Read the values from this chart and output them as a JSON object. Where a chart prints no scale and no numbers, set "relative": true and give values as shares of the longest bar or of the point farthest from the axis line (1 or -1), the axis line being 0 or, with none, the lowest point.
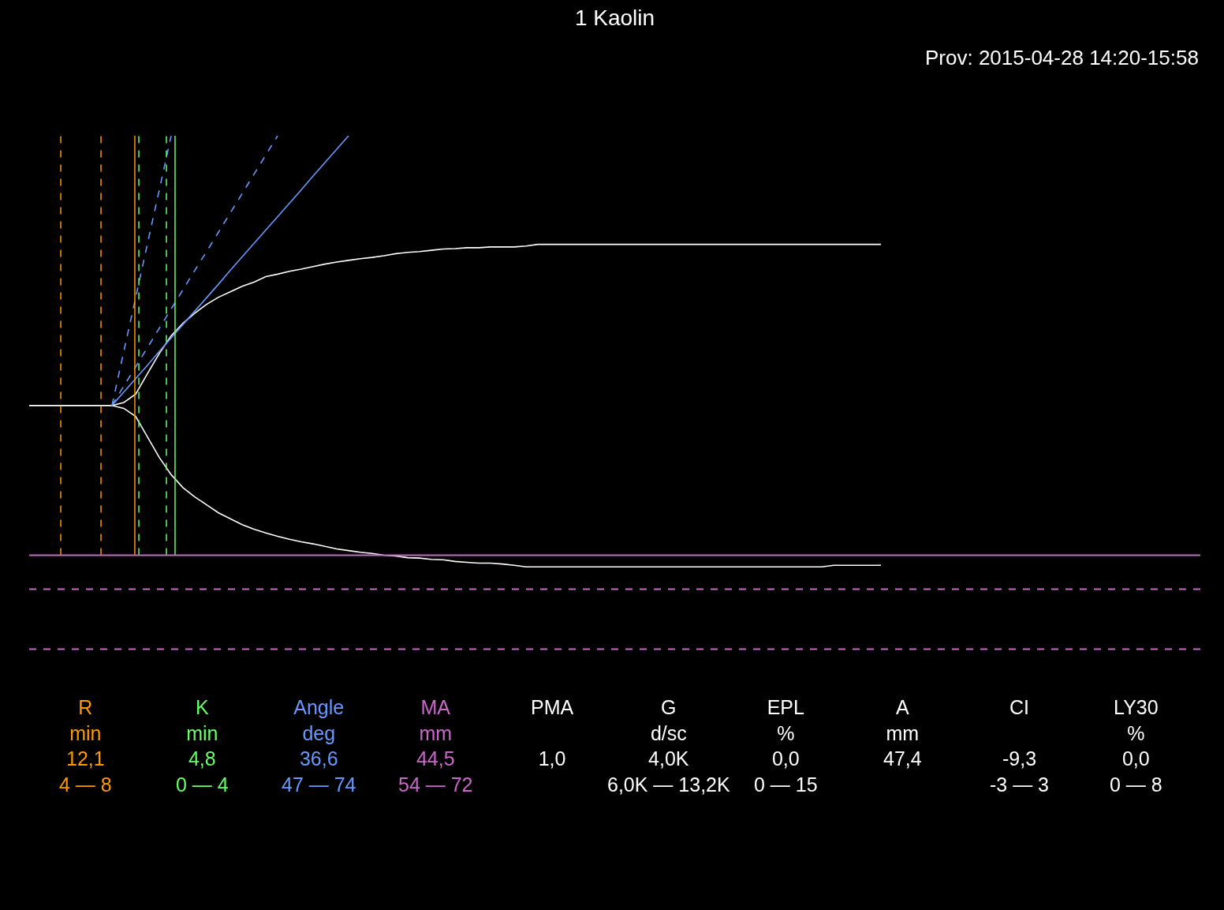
{
  "chart_data": {
    "type": "line",
    "relative": true,
    "title": "1 Kaolin",
    "subtitle": "Prov: 2015-04-28 14:20-15:58",
    "categories": [
      null,
      null,
      null,
      null,
      null,
      null,
      null,
      null,
      null,
      null,
      null,
      null,
      null,
      null,
      null,
      null,
      null,
      null,
      null,
      null,
      null,
      null,
      null,
      null,
      null,
      null,
      null,
      null,
      null,
      null,
      null,
      null,
      null,
      null,
      null,
      null,
      null,
      null,
      null,
      null,
      null,
      null,
      null,
      null,
      null,
      null,
      null,
      null,
      null,
      null,
      null,
      null,
      null,
      null,
      null,
      null,
      null,
      null,
      null,
      null,
      null,
      null,
      null,
      null,
      null,
      null,
      null,
      null,
      null,
      null,
      null,
      null,
      null,
      null,
      null,
      null,
      null,
      null,
      null,
      null,
      null,
      null,
      null,
      null,
      null,
      null,
      null,
      null,
      null,
      null,
      null,
      null,
      null,
      null,
      null,
      null,
      null,
      null,
      null,
      null
    ],
    "series": [
      {
        "color": "#ffffff",
        "line_style": "solid",
        "values": [
          0.357,
          0.357,
          0.357,
          0.357,
          0.357,
          0.357,
          0.357,
          0.357,
          0.364,
          0.384,
          0.433,
          0.481,
          0.523,
          0.553,
          0.577,
          0.598,
          0.615,
          0.628,
          0.641,
          0.651,
          0.664,
          0.67,
          0.677,
          0.682,
          0.688,
          0.694,
          0.699,
          0.703,
          0.707,
          0.71,
          0.714,
          0.719,
          0.722,
          0.724,
          0.727,
          0.73,
          0.731,
          0.733,
          0.733,
          0.735,
          0.735,
          0.735,
          0.737,
          0.741,
          0.741,
          0.741,
          0.741,
          0.741,
          0.741,
          0.741,
          0.741,
          0.741,
          0.741,
          0.741,
          0.741,
          0.741,
          0.741,
          0.741,
          0.741,
          0.741,
          0.741,
          0.741,
          0.741,
          0.741,
          0.741,
          0.741,
          0.741,
          0.741,
          0.741,
          0.741,
          0.741,
          0.741,
          0.741,
          null,
          null,
          null,
          null,
          null,
          null,
          null,
          null,
          null,
          null,
          null,
          null,
          null,
          null,
          null,
          null,
          null,
          null,
          null,
          null,
          null,
          null,
          null,
          null,
          null,
          null,
          null
        ]
      },
      {
        "color": "#ffffff",
        "line_style": "solid",
        "values": [
          0.357,
          0.357,
          0.357,
          0.357,
          0.357,
          0.357,
          0.357,
          0.357,
          0.35,
          0.331,
          0.282,
          0.233,
          0.192,
          0.161,
          0.139,
          0.12,
          0.101,
          0.087,
          0.073,
          0.062,
          0.053,
          0.045,
          0.038,
          0.032,
          0.027,
          0.021,
          0.015,
          0.011,
          0.007,
          0.004,
          0,
          -0.002,
          -0.006,
          -0.007,
          -0.01,
          -0.011,
          -0.015,
          -0.017,
          -0.019,
          -0.019,
          -0.021,
          -0.024,
          -0.028,
          -0.028,
          -0.028,
          -0.028,
          -0.028,
          -0.028,
          -0.028,
          -0.028,
          -0.028,
          -0.028,
          -0.028,
          -0.028,
          -0.028,
          -0.028,
          -0.028,
          -0.028,
          -0.028,
          -0.028,
          -0.028,
          -0.028,
          -0.028,
          -0.028,
          -0.028,
          -0.028,
          -0.028,
          -0.028,
          -0.024,
          -0.024,
          -0.024,
          -0.024,
          -0.024,
          null,
          null,
          null,
          null,
          null,
          null,
          null,
          null,
          null,
          null,
          null,
          null,
          null,
          null,
          null,
          null,
          null,
          null,
          null,
          null,
          null,
          null,
          null,
          null,
          null,
          null,
          null
        ]
      },
      {
        "color": "#6699ff",
        "line_style": "solid",
        "values": [
          null,
          null,
          null,
          null,
          null,
          null,
          null,
          0.357,
          0.389,
          0.421,
          0.453,
          0.486,
          0.518,
          0.55,
          0.582,
          0.614,
          0.646,
          0.679,
          0.711,
          0.743,
          0.775,
          0.807,
          0.839,
          0.871,
          0.904,
          0.936,
          0.968,
          1,
          null,
          null,
          null,
          null,
          null,
          null,
          null,
          null,
          null,
          null,
          null,
          null,
          null,
          null,
          null,
          null,
          null,
          null,
          null,
          null,
          null,
          null,
          null,
          null,
          null,
          null,
          null,
          null,
          null,
          null,
          null,
          null,
          null,
          null,
          null,
          null,
          null,
          null,
          null,
          null,
          null,
          null,
          null,
          null,
          null,
          null,
          null,
          null,
          null,
          null,
          null,
          null,
          null,
          null,
          null,
          null,
          null,
          null,
          null,
          null,
          null,
          null,
          null,
          null,
          null,
          null,
          null,
          null,
          null,
          null,
          null,
          null
        ]
      },
      {
        "color": "#6699ff",
        "line_style": "dashed",
        "values": [
          null,
          null,
          null,
          null,
          null,
          null,
          null,
          0.357,
          0.403,
          0.449,
          0.495,
          0.541,
          0.587,
          0.633,
          0.679,
          0.724,
          0.77,
          0.816,
          0.862,
          0.908,
          0.954,
          1,
          null,
          null,
          null,
          null,
          null,
          null,
          null,
          null,
          null,
          null,
          null,
          null,
          null,
          null,
          null,
          null,
          null,
          null,
          null,
          null,
          null,
          null,
          null,
          null,
          null,
          null,
          null,
          null,
          null,
          null,
          null,
          null,
          null,
          null,
          null,
          null,
          null,
          null,
          null,
          null,
          null,
          null,
          null,
          null,
          null,
          null,
          null,
          null,
          null,
          null,
          null,
          null,
          null,
          null,
          null,
          null,
          null,
          null,
          null,
          null,
          null,
          null,
          null,
          null,
          null,
          null,
          null,
          null,
          null,
          null,
          null,
          null,
          null,
          null,
          null,
          null,
          null,
          null
        ]
      },
      {
        "color": "#6699ff",
        "line_style": "dashed",
        "values": [
          null,
          null,
          null,
          null,
          null,
          null,
          null,
          0.357,
          0.486,
          0.614,
          0.743,
          0.871,
          1,
          null,
          null,
          null,
          null,
          null,
          null,
          null,
          null,
          null,
          null,
          null,
          null,
          null,
          null,
          null,
          null,
          null,
          null,
          null,
          null,
          null,
          null,
          null,
          null,
          null,
          null,
          null,
          null,
          null,
          null,
          null,
          null,
          null,
          null,
          null,
          null,
          null,
          null,
          null,
          null,
          null,
          null,
          null,
          null,
          null,
          null,
          null,
          null,
          null,
          null,
          null,
          null,
          null,
          null,
          null,
          null,
          null,
          null,
          null,
          null,
          null,
          null,
          null,
          null,
          null,
          null,
          null,
          null,
          null,
          null,
          null,
          null,
          null,
          null,
          null,
          null,
          null,
          null,
          null,
          null,
          null,
          null,
          null,
          null,
          null,
          null,
          null
        ]
      }
    ],
    "ref_lines": [
      {
        "axis": "y",
        "value": 0,
        "color": "#cc66cc",
        "line_style": "solid"
      },
      {
        "axis": "y",
        "value": -0.081,
        "color": "#cc66cc",
        "line_style": "dashed"
      },
      {
        "axis": "y",
        "value": -0.224,
        "color": "#cc66cc",
        "line_style": "dashed"
      }
    ],
    "annotations": [
      "R\nmin\n12,1\n4 — 8",
      "K\nmin\n4,8\n0 — 4",
      "Angle\ndeg\n36,6\n47 — 74",
      "MA\nmm\n44,5\n54 — 72",
      "PMA\n\n1,0\n",
      "G\nd/sc\n4,0K\n6,0K — 13,2K",
      "EPL\n%\n0,0\n0 — 15",
      "A\nmm\n47,4\n",
      "CI\n\n-9,3\n-3 — 3",
      "LY30\n%\n0,0\n0 — 8"
    ]
  }
}
